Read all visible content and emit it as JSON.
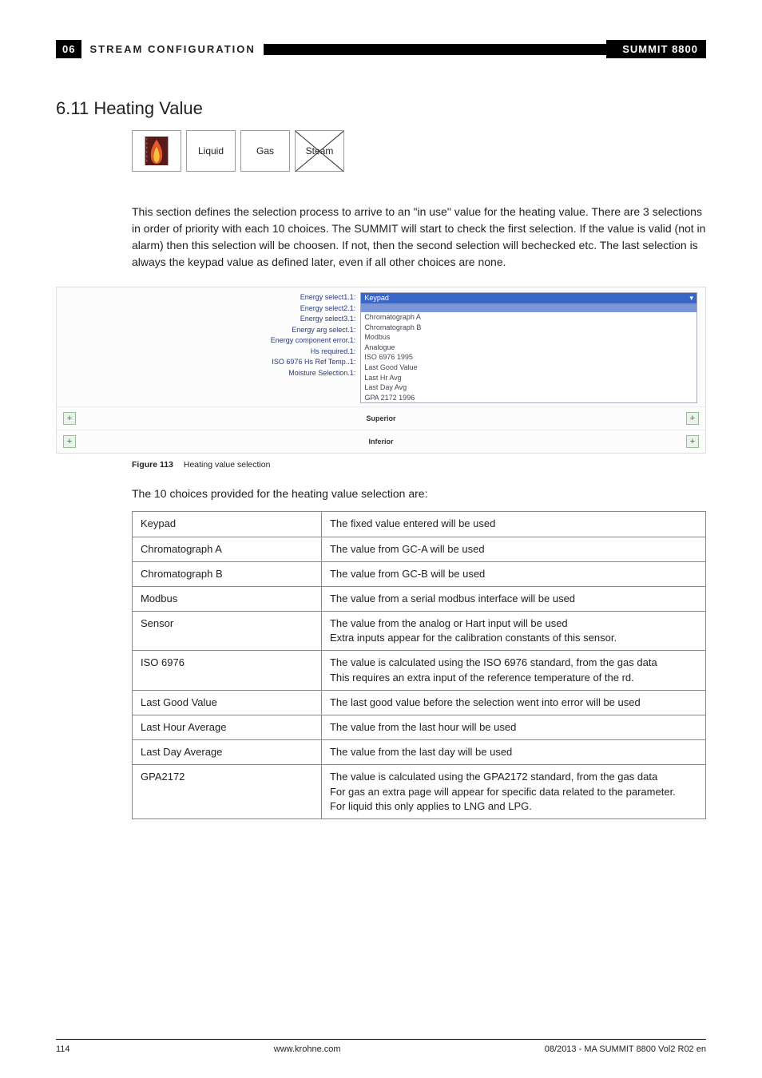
{
  "header": {
    "chapter_num": "06",
    "chapter_title": "STREAM CONFIGURATION",
    "product": "SUMMIT 8800"
  },
  "section": {
    "number": "6.11",
    "title": "Heating Value"
  },
  "icon_row": {
    "liquid_label": "Liquid",
    "gas_label": "Gas",
    "steam_label": "Steam"
  },
  "intro_paragraph": "This section defines the selection process to arrive to an \"in use\" value for the heating value. There are 3 selections in order of priority with each 10 choices. The SUMMIT will start to check the first selection. If the value is valid (not in alarm) then this selection will be choosen. If not, then the second selection will bechecked etc. The last selection is always the keypad value as defined later, even if all other choices are none.",
  "figure": {
    "number": "Figure 113",
    "caption": "Heating value selection",
    "labels": [
      "Energy select1.1:",
      "Energy select2.1:",
      "Energy select3.1:",
      "Energy arg select.1:",
      "Energy component error.1:",
      "Hs required.1:",
      "ISO 6976 Hs Ref Temp..1:",
      "Moisture Selection.1:"
    ],
    "dropdown_selected": "Keypad",
    "dropdown_items": [
      "Chromatograph A",
      "Chromatograph B",
      "Modbus",
      "Analogue",
      "ISO 6976 1995",
      "Last Good Value",
      "Last Hr Avg",
      "Last Day Avg",
      "GPA 2172 1996"
    ],
    "row_superior": "Superior",
    "row_inferior": "Inferior"
  },
  "table_intro": "The 10 choices provided for the heating value selection are:",
  "choices": [
    {
      "name": "Keypad",
      "desc": "The fixed value entered will be used"
    },
    {
      "name": "Chromatograph A",
      "desc": "The value from GC-A will be used"
    },
    {
      "name": "Chromatograph B",
      "desc": "The value from GC-B will be used"
    },
    {
      "name": "Modbus",
      "desc": "The value from a serial modbus interface will be used"
    },
    {
      "name": "Sensor",
      "desc": "The value from the analog or Hart input will be used\nExtra inputs appear for the calibration constants of this sensor."
    },
    {
      "name": "ISO 6976",
      "desc": "The value is calculated using the ISO 6976 standard, from the gas data\nThis requires an extra input of the reference temperature of the rd."
    },
    {
      "name": "Last Good Value",
      "desc": "The last good value before the selection went into error will be used"
    },
    {
      "name": "Last Hour Average",
      "desc": "The value from the last hour will be used"
    },
    {
      "name": "Last Day Average",
      "desc": "The value from the last day will be used"
    },
    {
      "name": "GPA2172",
      "desc": "The value is calculated using the GPA2172 standard, from the gas data\nFor gas an extra page will appear for specific data related to the parameter.\nFor liquid this only applies to LNG and LPG."
    }
  ],
  "footer": {
    "page": "114",
    "url": "www.krohne.com",
    "docid": "08/2013 - MA SUMMIT 8800 Vol2 R02 en"
  },
  "colors": {
    "header_bg": "#000000",
    "header_fg": "#ffffff",
    "dropdown_sel_bg": "#3a66c8",
    "table_border": "#888888"
  }
}
